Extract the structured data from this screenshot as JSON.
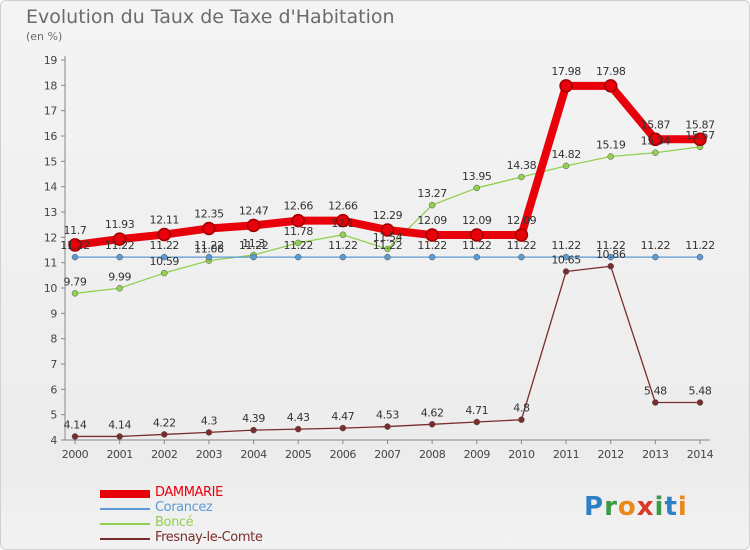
{
  "title": "Evolution du Taux de Taxe d'Habitation",
  "unit": "(en %)",
  "logo": [
    "P",
    "r",
    "o",
    "x",
    "i",
    "t",
    "i"
  ],
  "logo_colors": [
    "#2f7fc4",
    "#3a9a45",
    "#e8891a",
    "#d83b2b",
    "#3a9a45",
    "#2f7fc4",
    "#e8891a"
  ],
  "chart_data": {
    "type": "line",
    "x": [
      2000,
      2001,
      2002,
      2003,
      2004,
      2005,
      2006,
      2007,
      2008,
      2009,
      2010,
      2011,
      2012,
      2013,
      2014
    ],
    "ylim": [
      4,
      19
    ],
    "yticks": [
      4,
      5,
      6,
      7,
      8,
      9,
      10,
      11,
      12,
      13,
      14,
      15,
      16,
      17,
      18,
      19
    ],
    "grid": false,
    "legend_position": "bottom-left",
    "series": [
      {
        "name": "DAMMARIE",
        "color": "#e8000b",
        "values": [
          11.7,
          11.93,
          12.11,
          12.35,
          12.47,
          12.66,
          12.66,
          12.29,
          12.09,
          12.09,
          12.09,
          17.98,
          17.98,
          15.87,
          15.87
        ],
        "labels": [
          "11.7",
          "11.93",
          "12.11",
          "12.35",
          "12.47",
          "12.66",
          "12.66",
          "12.29",
          "12.09",
          "12.09",
          "12.09",
          "17.98",
          "17.98",
          "15.87",
          "15.87"
        ]
      },
      {
        "name": "Corancez",
        "color": "#5b9bd5",
        "values": [
          11.22,
          11.22,
          11.22,
          11.22,
          11.22,
          11.22,
          11.22,
          11.22,
          11.22,
          11.22,
          11.22,
          11.22,
          11.22,
          11.22,
          11.22
        ],
        "labels": [
          "11.22",
          "11.22",
          "11.22",
          "11.22",
          "11.22",
          "11.22",
          "11.22",
          "11.22",
          "11.22",
          "11.22",
          "11.22",
          "11.22",
          "11.22",
          "11.22",
          "11.22"
        ]
      },
      {
        "name": "Boncé",
        "color": "#92d050",
        "values": [
          9.79,
          9.99,
          10.59,
          11.08,
          11.3,
          11.78,
          12.1,
          11.54,
          13.27,
          13.95,
          14.38,
          14.82,
          15.19,
          15.34,
          15.57
        ],
        "labels": [
          "9.79",
          "9.99",
          "10.59",
          "11.08",
          "11.3",
          "11.78",
          "12.1",
          "11.54",
          "13.27",
          "13.95",
          "14.38",
          "14.82",
          "15.19",
          "15.34",
          "15.57"
        ]
      },
      {
        "name": "Fresnay-le-Comte",
        "color": "#7b2c2c",
        "values": [
          4.14,
          4.14,
          4.22,
          4.3,
          4.39,
          4.43,
          4.47,
          4.53,
          4.62,
          4.71,
          4.8,
          10.65,
          10.86,
          5.48,
          5.48
        ],
        "labels": [
          "4.14",
          "4.14",
          "4.22",
          "4.3",
          "4.39",
          "4.43",
          "4.47",
          "4.53",
          "4.62",
          "4.71",
          "4.8",
          "10.65",
          "10.86",
          "5.48",
          "5.48"
        ]
      }
    ]
  }
}
